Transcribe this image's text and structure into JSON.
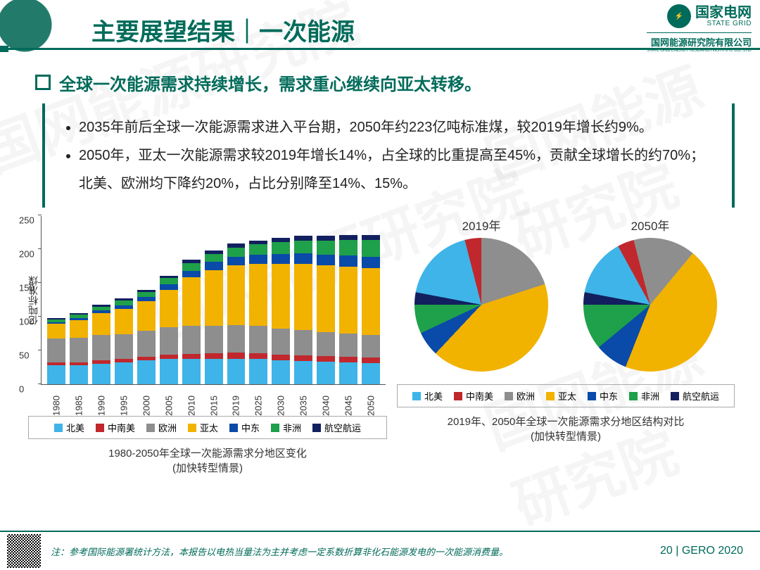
{
  "header": {
    "title": "主要展望结果｜一次能源",
    "logo_main": "国家电网",
    "logo_main_en": "STATE GRID",
    "logo_inst": "国网能源研究院有限公司",
    "logo_inst_en": "STATE GRID ENERGY RESEARCH INSTITUTE CO., LTD."
  },
  "summary": "全球一次能源需求持续增长，需求重心继续向亚太转移。",
  "bullets": [
    "2035年前后全球一次能源需求进入平台期，2050年约223亿吨标准煤，较2019年增长约9%。",
    "2050年，亚太一次能源需求较2019年增长14%，占全球的比重提高至45%，贡献全球增长的约70%；北美、欧洲均下降约20%，占比分别降至14%、15%。"
  ],
  "regions": [
    {
      "key": "na",
      "label": "北美",
      "color": "#3fb4e8"
    },
    {
      "key": "csa",
      "label": "中南美",
      "color": "#c0282d"
    },
    {
      "key": "eu",
      "label": "欧洲",
      "color": "#8e8e8e"
    },
    {
      "key": "ap",
      "label": "亚太",
      "color": "#f2b200"
    },
    {
      "key": "me",
      "label": "中东",
      "color": "#0a4aa8"
    },
    {
      "key": "af",
      "label": "非洲",
      "color": "#1fa04a"
    },
    {
      "key": "avsh",
      "label": "航空航运",
      "color": "#12205f"
    }
  ],
  "bar_chart": {
    "type": "stacked-bar",
    "ylabel": "亿吨标准煤",
    "ylim": [
      0,
      250
    ],
    "ytick_step": 50,
    "years": [
      1980,
      1985,
      1990,
      1995,
      2000,
      2005,
      2010,
      2015,
      2019,
      2025,
      2030,
      2035,
      2040,
      2045,
      2050
    ],
    "series_order": [
      "na",
      "csa",
      "eu",
      "ap",
      "me",
      "af",
      "avsh"
    ],
    "data": {
      "na": [
        28,
        28,
        30,
        32,
        35,
        37,
        37,
        38,
        38,
        37,
        35,
        34,
        33,
        32,
        31
      ],
      "csa": [
        4,
        4,
        5,
        5,
        6,
        7,
        8,
        8,
        9,
        9,
        9,
        9,
        9,
        9,
        9
      ],
      "eu": [
        36,
        37,
        38,
        37,
        38,
        40,
        41,
        41,
        41,
        40,
        38,
        37,
        35,
        34,
        33
      ],
      "ap": [
        22,
        26,
        32,
        38,
        44,
        56,
        72,
        82,
        88,
        92,
        96,
        98,
        99,
        99,
        99
      ],
      "me": [
        2,
        3,
        4,
        5,
        6,
        8,
        10,
        12,
        13,
        14,
        15,
        16,
        16,
        17,
        17
      ],
      "af": [
        4,
        5,
        6,
        7,
        8,
        9,
        11,
        12,
        13,
        15,
        17,
        19,
        21,
        23,
        25
      ],
      "avsh": [
        2,
        2,
        3,
        3,
        3,
        4,
        5,
        5,
        6,
        6,
        7,
        7,
        7,
        7,
        7
      ]
    },
    "caption_l1": "1980-2050年全球一次能源需求分地区变化",
    "caption_l2": "(加快转型情景)"
  },
  "pie_charts": {
    "type": "pie",
    "order_cw_from_top": [
      "avsh",
      "na",
      "csa",
      "eu",
      "ap",
      "me",
      "af"
    ],
    "pies": [
      {
        "title": "2019年",
        "shares": {
          "na": 18,
          "csa": 4,
          "eu": 20,
          "ap": 42,
          "me": 6,
          "af": 7,
          "avsh": 3
        }
      },
      {
        "title": "2050年",
        "shares": {
          "na": 14,
          "csa": 4,
          "eu": 15,
          "ap": 45,
          "me": 8,
          "af": 11,
          "avsh": 3
        }
      }
    ],
    "caption_l1": "2019年、2050年全球一次能源需求分地区结构对比",
    "caption_l2": "(加快转型情景)"
  },
  "footer": {
    "note": "注：参考国际能源署统计方法，本报告以电热当量法为主并考虑一定系数折算非化石能源发电的一次能源消费量。",
    "page": "20 | GERO 2020"
  },
  "watermark_text": "国网能源研究院"
}
